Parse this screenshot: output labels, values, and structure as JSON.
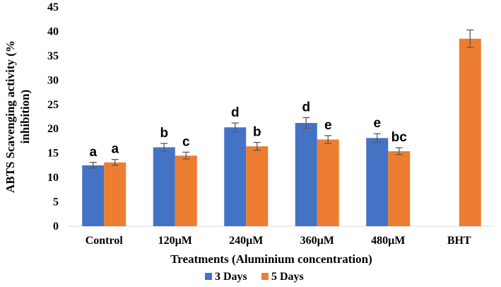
{
  "chart_data": {
    "type": "bar",
    "title": "",
    "xlabel": "Treatments  (Aluminium  concentration)",
    "ylabel_lines": [
      "ABTS Scavenging  activity  (%",
      "inhibition)"
    ],
    "ylim": [
      0,
      45
    ],
    "yticks": [
      0,
      5,
      10,
      15,
      20,
      25,
      30,
      35,
      40,
      45
    ],
    "categories": [
      "Control",
      "120µM",
      "240µM",
      "360µM",
      "480µM",
      "BHT"
    ],
    "series": [
      {
        "name": "3 Days",
        "color": "#4472C4",
        "values": [
          12.5,
          16.2,
          20.3,
          21.2,
          18.1,
          null
        ],
        "errors": [
          0.6,
          0.8,
          0.9,
          1.1,
          0.9,
          null
        ],
        "labels": [
          "a",
          "b",
          "d",
          "d",
          "e",
          ""
        ]
      },
      {
        "name": "5 Days",
        "color": "#ED7D31",
        "values": [
          13.1,
          14.5,
          16.4,
          17.8,
          15.4,
          38.5
        ],
        "errors": [
          0.6,
          0.7,
          0.8,
          0.8,
          0.7,
          1.8
        ],
        "labels": [
          "a",
          "c",
          "b",
          "e",
          "bc",
          ""
        ]
      }
    ],
    "legend": "bottom"
  }
}
